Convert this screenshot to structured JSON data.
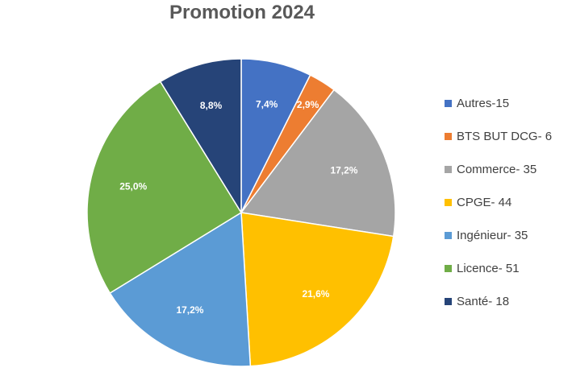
{
  "chart_data": {
    "type": "pie",
    "title": "Promotion 2024",
    "legend_position": "right",
    "slices": [
      {
        "label": "Autres-15",
        "value": 7.4,
        "display": "7,4%",
        "color": "#4472C4"
      },
      {
        "label": "BTS BUT DCG- 6",
        "value": 2.9,
        "display": "2,9%",
        "color": "#ED7D31"
      },
      {
        "label": "Commerce- 35",
        "value": 17.2,
        "display": "17,2%",
        "color": "#A5A5A5"
      },
      {
        "label": "CPGE- 44",
        "value": 21.6,
        "display": "21,6%",
        "color": "#FFC000"
      },
      {
        "label": "Ingénieur- 35",
        "value": 17.2,
        "display": "17,2%",
        "color": "#5B9BD5"
      },
      {
        "label": "Licence- 51",
        "value": 25.0,
        "display": "25,0%",
        "color": "#70AD47"
      },
      {
        "label": "Santé- 18",
        "value": 8.8,
        "display": "8,8%",
        "color": "#264478"
      }
    ]
  }
}
